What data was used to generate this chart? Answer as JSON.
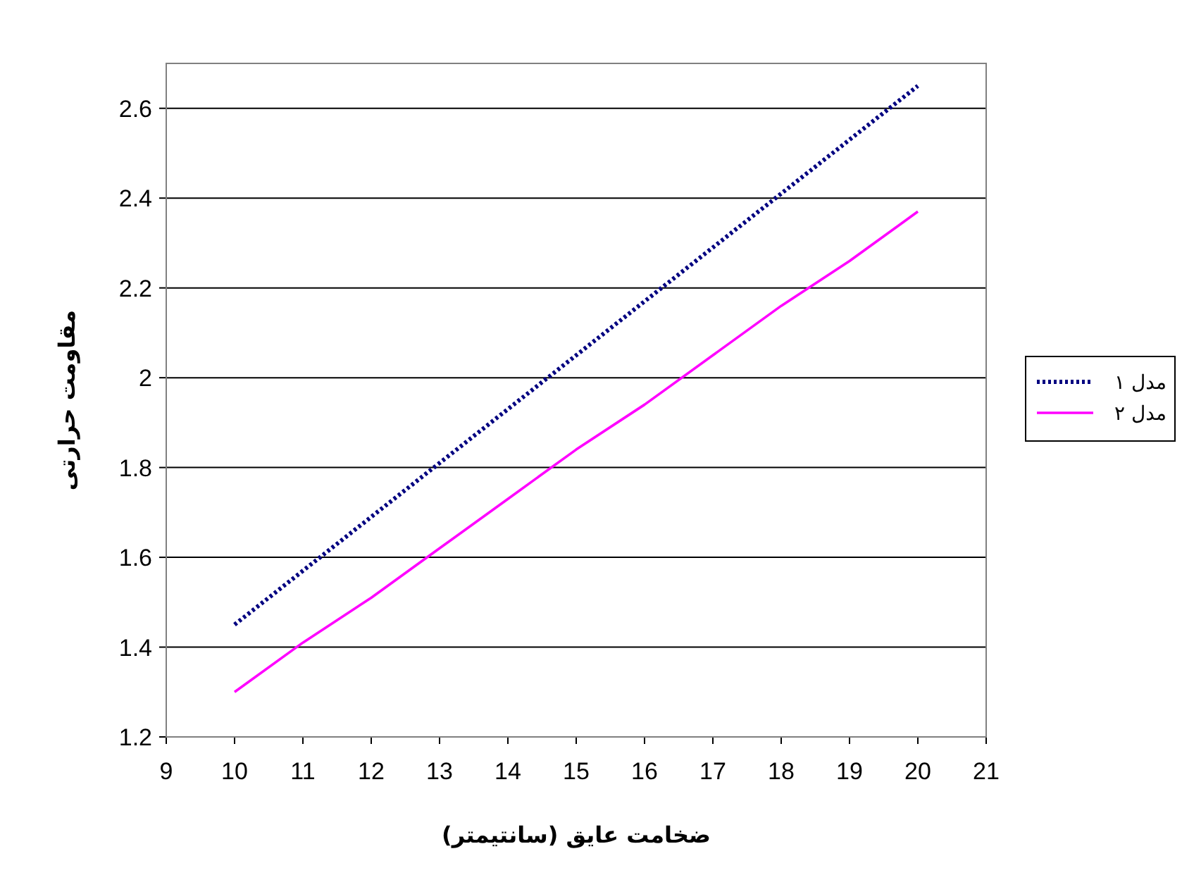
{
  "chart_data": {
    "type": "line",
    "xlabel": "ضخامت عایق (سانتیمتر)",
    "ylabel": "مقاومت حرارتی",
    "x": [
      10,
      11,
      12,
      13,
      14,
      15,
      16,
      17,
      18,
      19,
      20
    ],
    "series": [
      {
        "name": "مدل ۱",
        "color": "#000080",
        "line_style": "dotted",
        "values": [
          1.45,
          1.57,
          1.69,
          1.81,
          1.93,
          2.05,
          2.17,
          2.29,
          2.41,
          2.53,
          2.65
        ]
      },
      {
        "name": "مدل ۲",
        "color": "#ff00ff",
        "line_style": "solid",
        "values": [
          1.3,
          1.41,
          1.51,
          1.62,
          1.73,
          1.84,
          1.94,
          2.05,
          2.16,
          2.26,
          2.37
        ]
      }
    ],
    "xlim": [
      9,
      21
    ],
    "xticks": [
      9,
      10,
      11,
      12,
      13,
      14,
      15,
      16,
      17,
      18,
      19,
      20,
      21
    ],
    "ylim": [
      1.2,
      2.7
    ],
    "yticks": [
      1.2,
      1.4,
      1.6,
      1.8,
      2,
      2.2,
      2.4,
      2.6
    ],
    "grid": "y",
    "legend": "right",
    "marker": "none"
  }
}
